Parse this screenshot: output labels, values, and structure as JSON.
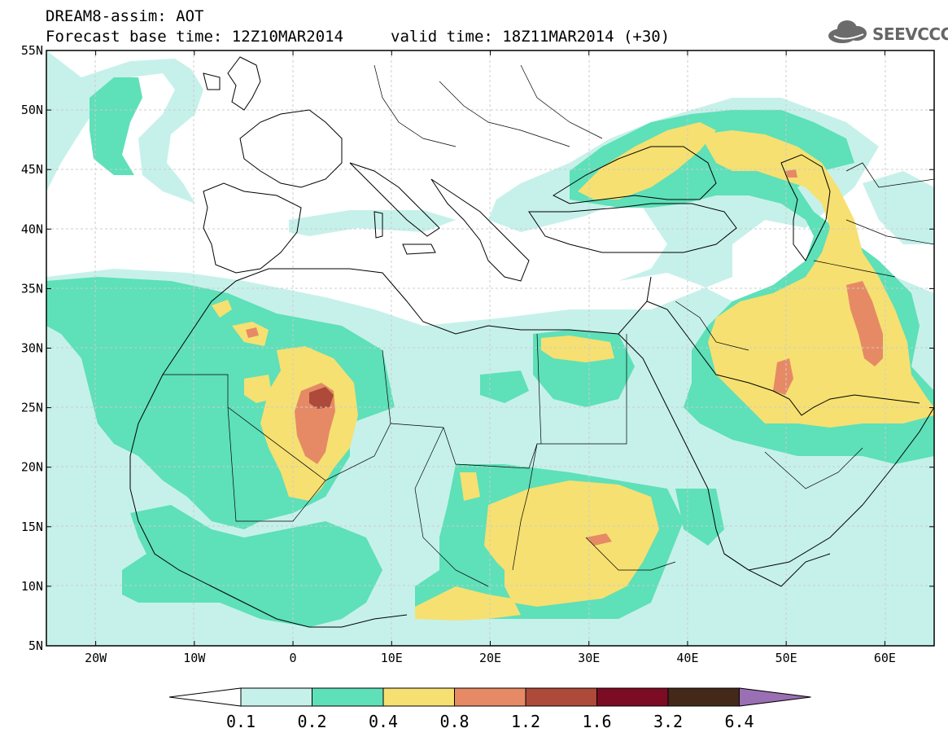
{
  "header": {
    "line1": "DREAM8-assim: AOT",
    "line2": "Forecast base time: 12Z10MAR2014",
    "valid": "valid time: 18Z11MAR2014 (+30)",
    "logo_text": "SEEVCCC"
  },
  "map": {
    "lon_range": [
      -25,
      65
    ],
    "lat_range": [
      5,
      55
    ],
    "lat_labels": [
      {
        "value": 55,
        "text": "55N"
      },
      {
        "value": 50,
        "text": "50N"
      },
      {
        "value": 45,
        "text": "45N"
      },
      {
        "value": 40,
        "text": "40N"
      },
      {
        "value": 35,
        "text": "35N"
      },
      {
        "value": 30,
        "text": "30N"
      },
      {
        "value": 25,
        "text": "25N"
      },
      {
        "value": 20,
        "text": "20N"
      },
      {
        "value": 15,
        "text": "15N"
      },
      {
        "value": 10,
        "text": "10N"
      },
      {
        "value": 5,
        "text": "5N"
      }
    ],
    "lon_labels": [
      {
        "value": -20,
        "text": "20W"
      },
      {
        "value": -10,
        "text": "10W"
      },
      {
        "value": 0,
        "text": "0"
      },
      {
        "value": 10,
        "text": "10E"
      },
      {
        "value": 20,
        "text": "20E"
      },
      {
        "value": 30,
        "text": "30E"
      },
      {
        "value": 40,
        "text": "40E"
      },
      {
        "value": 50,
        "text": "50E"
      },
      {
        "value": 60,
        "text": "60E"
      }
    ]
  },
  "colorbar": {
    "levels": [
      "0.1",
      "0.2",
      "0.4",
      "0.8",
      "1.2",
      "1.6",
      "3.2",
      "6.4"
    ],
    "under_color": "#ffffff",
    "colors": [
      "#c6f1ea",
      "#5ee0b8",
      "#f6e071",
      "#e68a66",
      "#ad4a3a",
      "#7c0c24",
      "#44281a"
    ],
    "over_color": "#9b6fb3"
  },
  "colors": {
    "c1": "#c6f1ea",
    "c2": "#5ee0b8",
    "c3": "#f6e071",
    "c4": "#e68a66",
    "c5": "#ad4a3a"
  }
}
